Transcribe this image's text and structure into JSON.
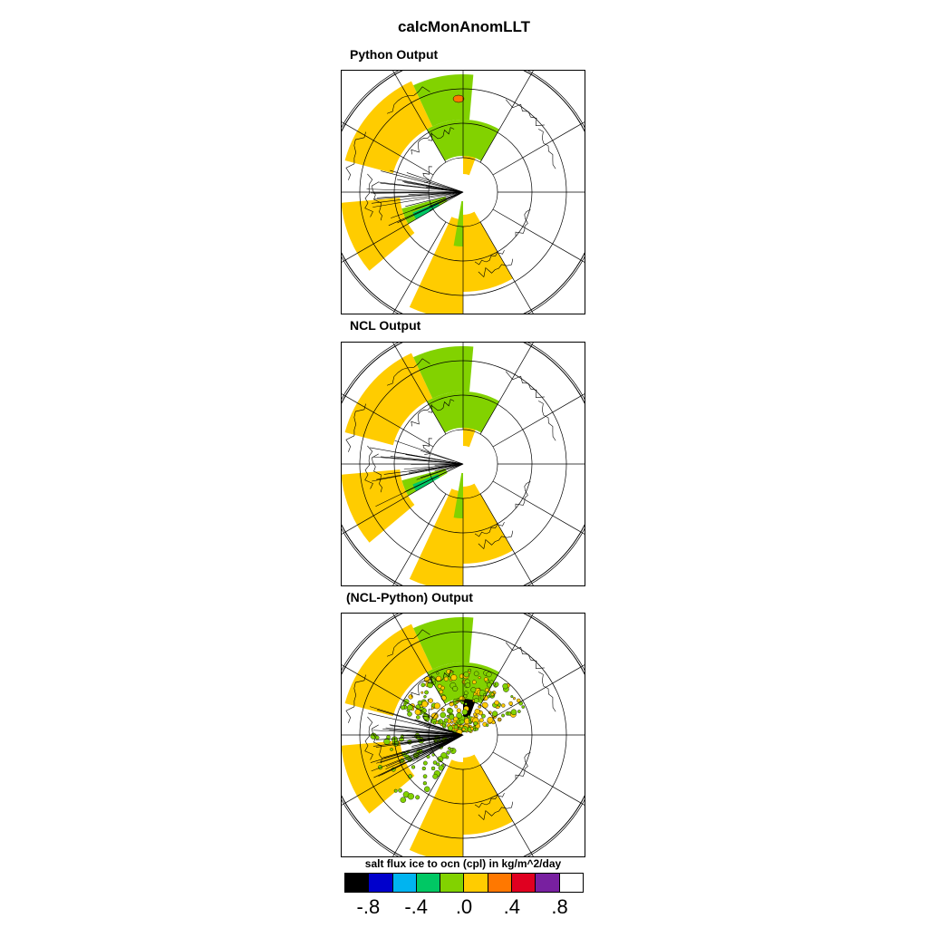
{
  "title": "calcMonAnomLLT",
  "panels": [
    {
      "title": "Python Output"
    },
    {
      "title": "NCL Output"
    },
    {
      "title": "(NCL-Python) Output"
    }
  ],
  "colorbar": {
    "label": "salt flux ice to ocn (cpl) in kg/m^2/day",
    "colors": [
      "#000000",
      "#0000cc",
      "#00b4f0",
      "#00c864",
      "#82d200",
      "#ffcc00",
      "#ff7800",
      "#e00020",
      "#7820a0",
      "#ffffff"
    ],
    "ticks": [
      "-.8",
      "-.4",
      ".0",
      ".4",
      ".8"
    ]
  },
  "map": {
    "land_color": "#ffcc00",
    "ice_color": "#82d200",
    "deep_color": "#00c864"
  }
}
